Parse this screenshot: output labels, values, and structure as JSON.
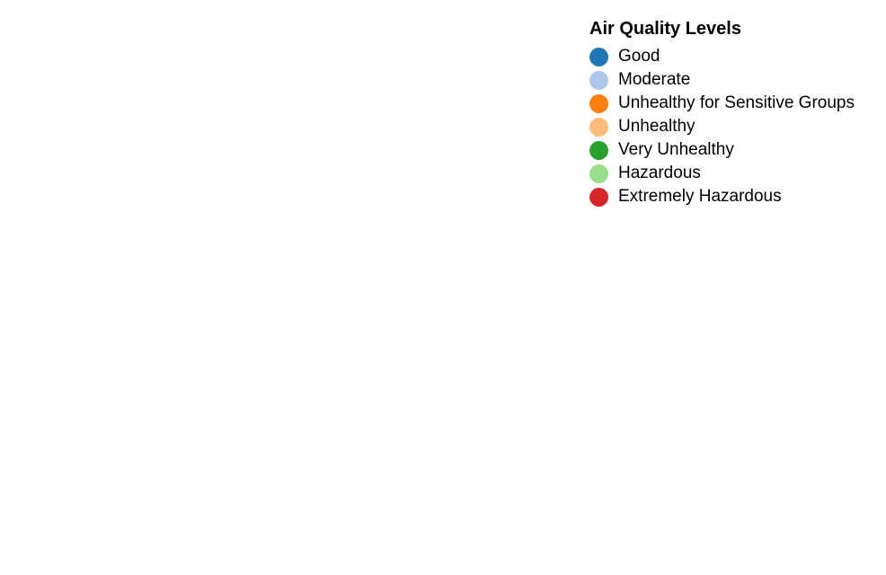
{
  "chart_data": {
    "type": "pie",
    "categories": [],
    "values": [],
    "legend": {
      "title": "Air Quality Levels",
      "placement": "top-right",
      "entries": [
        {
          "label": "Good",
          "color": "#1f77b4"
        },
        {
          "label": "Moderate",
          "color": "#aec7e8"
        },
        {
          "label": "Unhealthy for Sensitive Groups",
          "color": "#ff7f0e"
        },
        {
          "label": "Unhealthy",
          "color": "#ffbb78"
        },
        {
          "label": "Very Unhealthy",
          "color": "#2ca02c"
        },
        {
          "label": "Hazardous",
          "color": "#98df8a"
        },
        {
          "label": "Extremely Hazardous",
          "color": "#d62728"
        }
      ]
    }
  }
}
